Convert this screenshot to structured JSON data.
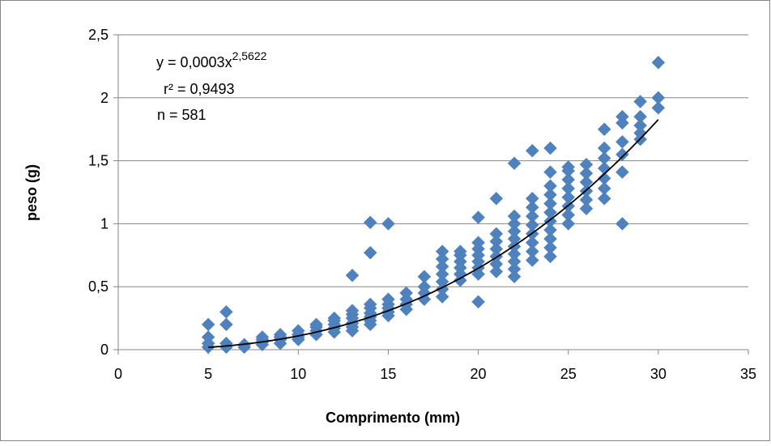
{
  "chart_data": {
    "type": "scatter",
    "title": "",
    "xlabel": "Comprimento (mm)",
    "ylabel": "peso (g)",
    "xlim": [
      0,
      35
    ],
    "ylim": [
      0,
      2.5
    ],
    "x_ticks": [
      0,
      5,
      10,
      15,
      20,
      25,
      30,
      35
    ],
    "y_ticks": [
      0,
      0.5,
      1,
      1.5,
      2,
      2.5
    ],
    "x_tick_labels": [
      "0",
      "5",
      "10",
      "15",
      "20",
      "25",
      "30",
      "35"
    ],
    "y_tick_labels": [
      "0",
      "0,5",
      "1",
      "1,5",
      "2",
      "2,5"
    ],
    "grid": "horizontal",
    "legend": "none",
    "marker": "diamond",
    "colors": {
      "marker": "#4F81BD",
      "trendline": "#000000",
      "gridline": "#868686",
      "frame": "#868686"
    },
    "series": [
      {
        "points": [
          [
            5,
            0.02
          ],
          [
            5,
            0.05
          ],
          [
            5,
            0.1
          ],
          [
            5,
            0.2
          ],
          [
            6,
            0.02
          ],
          [
            6,
            0.05
          ],
          [
            6,
            0.2
          ],
          [
            6,
            0.3
          ],
          [
            7,
            0.02
          ],
          [
            7,
            0.04
          ],
          [
            8,
            0.04
          ],
          [
            8,
            0.06
          ],
          [
            8,
            0.08
          ],
          [
            8,
            0.1
          ],
          [
            9,
            0.05
          ],
          [
            9,
            0.08
          ],
          [
            9,
            0.1
          ],
          [
            9,
            0.12
          ],
          [
            10,
            0.08
          ],
          [
            10,
            0.1
          ],
          [
            10,
            0.12
          ],
          [
            10,
            0.15
          ],
          [
            11,
            0.12
          ],
          [
            11,
            0.15
          ],
          [
            11,
            0.18
          ],
          [
            11,
            0.2
          ],
          [
            12,
            0.14
          ],
          [
            12,
            0.17
          ],
          [
            12,
            0.2
          ],
          [
            12,
            0.23
          ],
          [
            12,
            0.25
          ],
          [
            13,
            0.15
          ],
          [
            13,
            0.18
          ],
          [
            13,
            0.21
          ],
          [
            13,
            0.25
          ],
          [
            13,
            0.28
          ],
          [
            13,
            0.31
          ],
          [
            13,
            0.59
          ],
          [
            14,
            0.2
          ],
          [
            14,
            0.23
          ],
          [
            14,
            0.26
          ],
          [
            14,
            0.29
          ],
          [
            14,
            0.33
          ],
          [
            14,
            0.36
          ],
          [
            14,
            0.77
          ],
          [
            14,
            1.01
          ],
          [
            15,
            0.27
          ],
          [
            15,
            0.3
          ],
          [
            15,
            0.33
          ],
          [
            15,
            0.36
          ],
          [
            15,
            0.4
          ],
          [
            15,
            1.0
          ],
          [
            16,
            0.32
          ],
          [
            16,
            0.36
          ],
          [
            16,
            0.4
          ],
          [
            16,
            0.45
          ],
          [
            17,
            0.4
          ],
          [
            17,
            0.45
          ],
          [
            17,
            0.5
          ],
          [
            17,
            0.58
          ],
          [
            18,
            0.42
          ],
          [
            18,
            0.48
          ],
          [
            18,
            0.54
          ],
          [
            18,
            0.6
          ],
          [
            18,
            0.66
          ],
          [
            18,
            0.72
          ],
          [
            18,
            0.78
          ],
          [
            19,
            0.55
          ],
          [
            19,
            0.6
          ],
          [
            19,
            0.65
          ],
          [
            19,
            0.7
          ],
          [
            19,
            0.75
          ],
          [
            19,
            0.78
          ],
          [
            20,
            0.38
          ],
          [
            20,
            0.6
          ],
          [
            20,
            0.65
          ],
          [
            20,
            0.7
          ],
          [
            20,
            0.75
          ],
          [
            20,
            0.8
          ],
          [
            20,
            0.85
          ],
          [
            20,
            1.05
          ],
          [
            21,
            0.62
          ],
          [
            21,
            0.68
          ],
          [
            21,
            0.74
          ],
          [
            21,
            0.8
          ],
          [
            21,
            0.86
          ],
          [
            21,
            0.92
          ],
          [
            21,
            1.2
          ],
          [
            22,
            0.58
          ],
          [
            22,
            0.64
          ],
          [
            22,
            0.7
          ],
          [
            22,
            0.76
          ],
          [
            22,
            0.82
          ],
          [
            22,
            0.88
          ],
          [
            22,
            0.94
          ],
          [
            22,
            1.0
          ],
          [
            22,
            1.06
          ],
          [
            22,
            1.48
          ],
          [
            23,
            0.71
          ],
          [
            23,
            0.78
          ],
          [
            23,
            0.85
          ],
          [
            23,
            0.92
          ],
          [
            23,
            0.99
          ],
          [
            23,
            1.06
          ],
          [
            23,
            1.13
          ],
          [
            23,
            1.2
          ],
          [
            23,
            1.58
          ],
          [
            24,
            0.74
          ],
          [
            24,
            0.81
          ],
          [
            24,
            0.88
          ],
          [
            24,
            0.95
          ],
          [
            24,
            1.02
          ],
          [
            24,
            1.09
          ],
          [
            24,
            1.16
          ],
          [
            24,
            1.23
          ],
          [
            24,
            1.3
          ],
          [
            24,
            1.41
          ],
          [
            24,
            1.6
          ],
          [
            25,
            1.0
          ],
          [
            25,
            1.07
          ],
          [
            25,
            1.14
          ],
          [
            25,
            1.21
          ],
          [
            25,
            1.28
          ],
          [
            25,
            1.35
          ],
          [
            25,
            1.42
          ],
          [
            25,
            1.45
          ],
          [
            26,
            1.12
          ],
          [
            26,
            1.19
          ],
          [
            26,
            1.26
          ],
          [
            26,
            1.33
          ],
          [
            26,
            1.4
          ],
          [
            26,
            1.47
          ],
          [
            27,
            1.2
          ],
          [
            27,
            1.28
          ],
          [
            27,
            1.36
          ],
          [
            27,
            1.44
          ],
          [
            27,
            1.52
          ],
          [
            27,
            1.6
          ],
          [
            27,
            1.75
          ],
          [
            28,
            1.0
          ],
          [
            28,
            1.41
          ],
          [
            28,
            1.55
          ],
          [
            28,
            1.65
          ],
          [
            28,
            1.8
          ],
          [
            28,
            1.85
          ],
          [
            29,
            1.67
          ],
          [
            29,
            1.72
          ],
          [
            29,
            1.78
          ],
          [
            29,
            1.85
          ],
          [
            29,
            1.97
          ],
          [
            30,
            1.92
          ],
          [
            30,
            2.0
          ],
          [
            30,
            2.28
          ]
        ]
      }
    ],
    "trendline": {
      "type": "power",
      "a": 0.0003,
      "b": 2.5622,
      "x_from": 5,
      "x_to": 30
    },
    "annotations": {
      "equation_prefix": "y = 0,0003x",
      "equation_exponent": "2,5622",
      "r2": "r² = 0,9493",
      "n": "n = 581"
    }
  }
}
